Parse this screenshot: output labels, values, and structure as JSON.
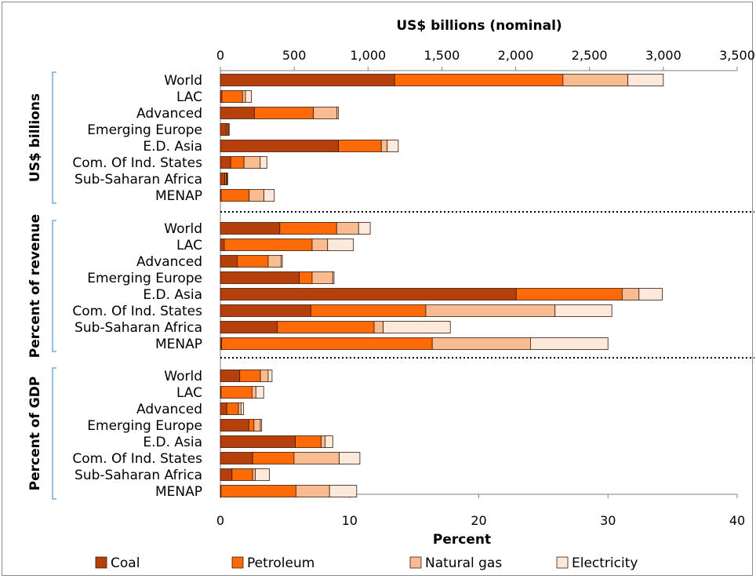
{
  "chart_data": {
    "type": "bar",
    "orientation": "horizontal",
    "stacked": true,
    "top_axis": {
      "title": "US$ billions (nominal)",
      "range": [
        0,
        3500
      ],
      "ticks": [
        "0",
        "500",
        "1,000",
        "1,500",
        "2,000",
        "2,500",
        "3,000",
        "3,500"
      ]
    },
    "bottom_axis": {
      "title": "Percent",
      "range": [
        0,
        40
      ],
      "ticks": [
        "0",
        "10",
        "20",
        "30",
        "40"
      ]
    },
    "legend": [
      {
        "name": "Coal",
        "color": "#b5400b"
      },
      {
        "name": "Petroleum",
        "color": "#ff6a08"
      },
      {
        "name": "Natural gas",
        "color": "#f9bb90"
      },
      {
        "name": "Electricity",
        "color": "#fde8dc"
      }
    ],
    "legend_position": "bottom",
    "groups": [
      {
        "label": "US$ billions",
        "axis": "top",
        "categories": [
          "World",
          "LAC",
          "Advanced",
          "Emerging Europe",
          "E.D. Asia",
          "Com. Of Ind. States",
          "Sub-Saharan Africa",
          "MENAP"
        ],
        "series": [
          {
            "name": "Coal",
            "values": [
              1180,
              10,
              230,
              40,
              800,
              70,
              30,
              5
            ]
          },
          {
            "name": "Petroleum",
            "values": [
              1140,
              140,
              400,
              10,
              290,
              90,
              10,
              190
            ]
          },
          {
            "name": "Natural gas",
            "values": [
              440,
              20,
              160,
              5,
              40,
              110,
              5,
              100
            ]
          },
          {
            "name": "Electricity",
            "values": [
              240,
              40,
              10,
              5,
              75,
              45,
              5,
              70
            ]
          }
        ]
      },
      {
        "label": "Percent of revenue",
        "axis": "bottom",
        "categories": [
          "World",
          "LAC",
          "Advanced",
          "Emerging Europe",
          "E.D. Asia",
          "Com. Of Ind. States",
          "Sub-Saharan Africa",
          "MENAP"
        ],
        "series": [
          {
            "name": "Coal",
            "values": [
              4.6,
              0.3,
              1.3,
              6.1,
              22.9,
              7.0,
              4.4,
              0.1
            ]
          },
          {
            "name": "Petroleum",
            "values": [
              4.4,
              6.8,
              2.4,
              1.0,
              8.2,
              8.9,
              7.5,
              16.3
            ]
          },
          {
            "name": "Natural gas",
            "values": [
              1.7,
              1.2,
              1.0,
              1.6,
              1.3,
              10.0,
              0.7,
              7.6
            ]
          },
          {
            "name": "Electricity",
            "values": [
              0.9,
              2.0,
              0.1,
              0.1,
              1.8,
              4.4,
              5.2,
              6.0
            ]
          }
        ]
      },
      {
        "label": "Percent of GDP",
        "axis": "bottom",
        "categories": [
          "World",
          "LAC",
          "Advanced",
          "Emerging Europe",
          "E.D. Asia",
          "Com. Of Ind. States",
          "Sub-Saharan Africa",
          "MENAP"
        ],
        "series": [
          {
            "name": "Coal",
            "values": [
              1.5,
              0.05,
              0.5,
              2.2,
              5.8,
              2.5,
              0.9,
              0.05
            ]
          },
          {
            "name": "Petroleum",
            "values": [
              1.6,
              2.4,
              0.9,
              0.4,
              2.0,
              3.2,
              1.6,
              5.8
            ]
          },
          {
            "name": "Natural gas",
            "values": [
              0.6,
              0.3,
              0.2,
              0.5,
              0.3,
              3.5,
              0.2,
              2.6
            ]
          },
          {
            "name": "Electricity",
            "values": [
              0.3,
              0.6,
              0.2,
              0.1,
              0.6,
              1.6,
              1.1,
              2.1
            ]
          }
        ]
      }
    ]
  }
}
